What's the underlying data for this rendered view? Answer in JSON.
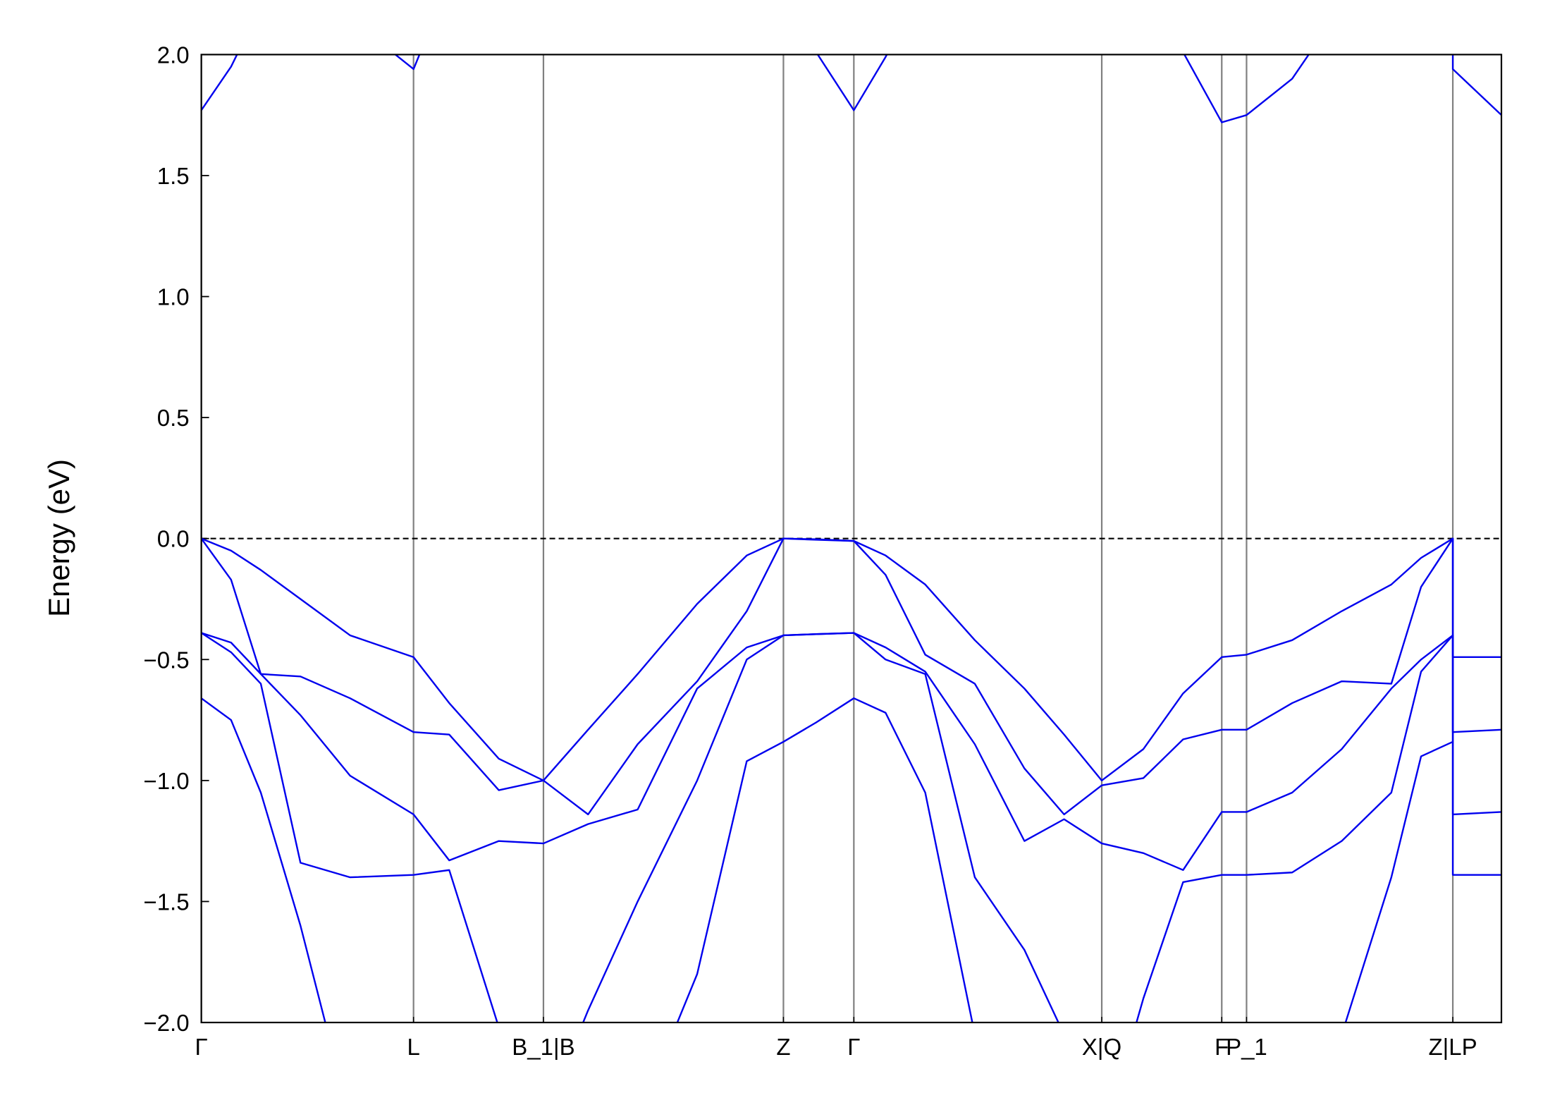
{
  "chart_data": {
    "type": "line",
    "ylabel": "Energy (eV)",
    "xlim": [
      0,
      13.11
    ],
    "ylim": [
      -2,
      2
    ],
    "xticks": [
      {
        "value": 0,
        "label": "Γ"
      },
      {
        "value": 2.14,
        "label": "L"
      },
      {
        "value": 3.45,
        "label": "B_1|B"
      },
      {
        "value": 5.87,
        "label": "Z"
      },
      {
        "value": 6.58,
        "label": "Γ"
      },
      {
        "value": 9.08,
        "label": "X|Q"
      },
      {
        "value": 10.29,
        "label": "F"
      },
      {
        "value": 10.54,
        "label": "P_1"
      },
      {
        "value": 12.62,
        "label": "Z|LP"
      }
    ],
    "yticks": [
      {
        "value": -2,
        "label": "−2.0"
      },
      {
        "value": -1.5,
        "label": "−1.5"
      },
      {
        "value": -1,
        "label": "−1.0"
      },
      {
        "value": -0.5,
        "label": "−0.5"
      },
      {
        "value": 0,
        "label": "0.0"
      },
      {
        "value": 0.5,
        "label": "0.5"
      },
      {
        "value": 1,
        "label": "1.0"
      },
      {
        "value": 1.5,
        "label": "1.5"
      },
      {
        "value": 2,
        "label": "2.0"
      }
    ],
    "fermi_level": 0,
    "x": [
      0,
      0.3,
      0.6,
      1.0,
      1.5,
      2.14,
      2.5,
      3.0,
      3.45,
      3.9,
      4.4,
      5.0,
      5.5,
      5.87,
      6.2,
      6.58,
      6.9,
      7.3,
      7.8,
      8.3,
      8.7,
      9.08,
      9.5,
      9.9,
      10.29,
      10.54,
      11.0,
      11.5,
      12.0,
      12.3,
      12.62,
      12.62,
      13.11
    ],
    "series": [
      {
        "color": "#0000ee",
        "values": [
          0,
          -0.05,
          -0.13,
          -0.25,
          -0.4,
          -0.49,
          -0.68,
          -0.91,
          -1.0,
          -0.79,
          -0.56,
          -0.27,
          -0.07,
          0,
          -0.003,
          -0.01,
          -0.07,
          -0.19,
          -0.42,
          -0.62,
          -0.81,
          -1.0,
          -0.87,
          -0.64,
          -0.49,
          -0.48,
          -0.42,
          -0.3,
          -0.19,
          -0.08,
          0,
          -0.49,
          -0.49
        ]
      },
      {
        "color": "#0000ee",
        "values": [
          0,
          -0.17,
          -0.56,
          -0.57,
          -0.66,
          -0.8,
          -0.81,
          -1.04,
          -1.0,
          -1.14,
          -0.85,
          -0.59,
          -0.3,
          0,
          -0.005,
          -0.01,
          -0.15,
          -0.48,
          -0.6,
          -0.95,
          -1.14,
          -1.02,
          -0.99,
          -0.83,
          -0.79,
          -0.79,
          -0.68,
          -0.59,
          -0.6,
          -0.2,
          0,
          -0.8,
          -0.79
        ]
      },
      {
        "color": "#0000ee",
        "values": [
          -0.39,
          -0.43,
          -0.56,
          -0.73,
          -0.98,
          -1.14,
          -1.33,
          -1.25,
          -1.26,
          -1.18,
          -1.12,
          -0.62,
          -0.45,
          -0.4,
          -0.395,
          -0.39,
          -0.45,
          -0.55,
          -0.85,
          -1.25,
          -1.16,
          -1.26,
          -1.3,
          -1.37,
          -1.13,
          -1.13,
          -1.05,
          -0.87,
          -0.62,
          -0.5,
          -0.4,
          -1.14,
          -1.13
        ]
      },
      {
        "color": "#0000ee",
        "values": [
          -0.39,
          -0.47,
          -0.6,
          -1.34,
          -1.4,
          -1.39,
          -1.37,
          -2.02,
          -2.4,
          -1.95,
          -1.5,
          -1.0,
          -0.5,
          -0.4,
          -0.395,
          -0.39,
          -0.5,
          -0.56,
          -1.4,
          -1.7,
          -2.05,
          -2.5,
          -1.9,
          -1.42,
          -1.39,
          -1.39,
          -1.38,
          -1.25,
          -1.05,
          -0.55,
          -0.4,
          -1.39,
          -1.39
        ]
      },
      {
        "color": "#0000ee",
        "values": [
          -0.66,
          -0.75,
          -1.05,
          -1.6,
          -2.4,
          null,
          null,
          null,
          null,
          null,
          -2.4,
          -1.8,
          -0.92,
          -0.84,
          -0.76,
          -0.66,
          -0.72,
          -1.05,
          -2.05,
          null,
          null,
          null,
          null,
          null,
          null,
          null,
          null,
          -2.05,
          -1.4,
          -0.9,
          -0.84,
          null,
          null
        ]
      },
      {
        "color": "#0000ee",
        "values": [
          1.77,
          1.95,
          2.2,
          null,
          2.15,
          1.94,
          2.3,
          null,
          null,
          null,
          null,
          null,
          null,
          null,
          2.01,
          1.77,
          1.99,
          2.3,
          null,
          null,
          null,
          null,
          null,
          2.01,
          1.72,
          1.75,
          1.9,
          2.2,
          null,
          null,
          2.5,
          1.94,
          1.75
        ]
      }
    ]
  }
}
